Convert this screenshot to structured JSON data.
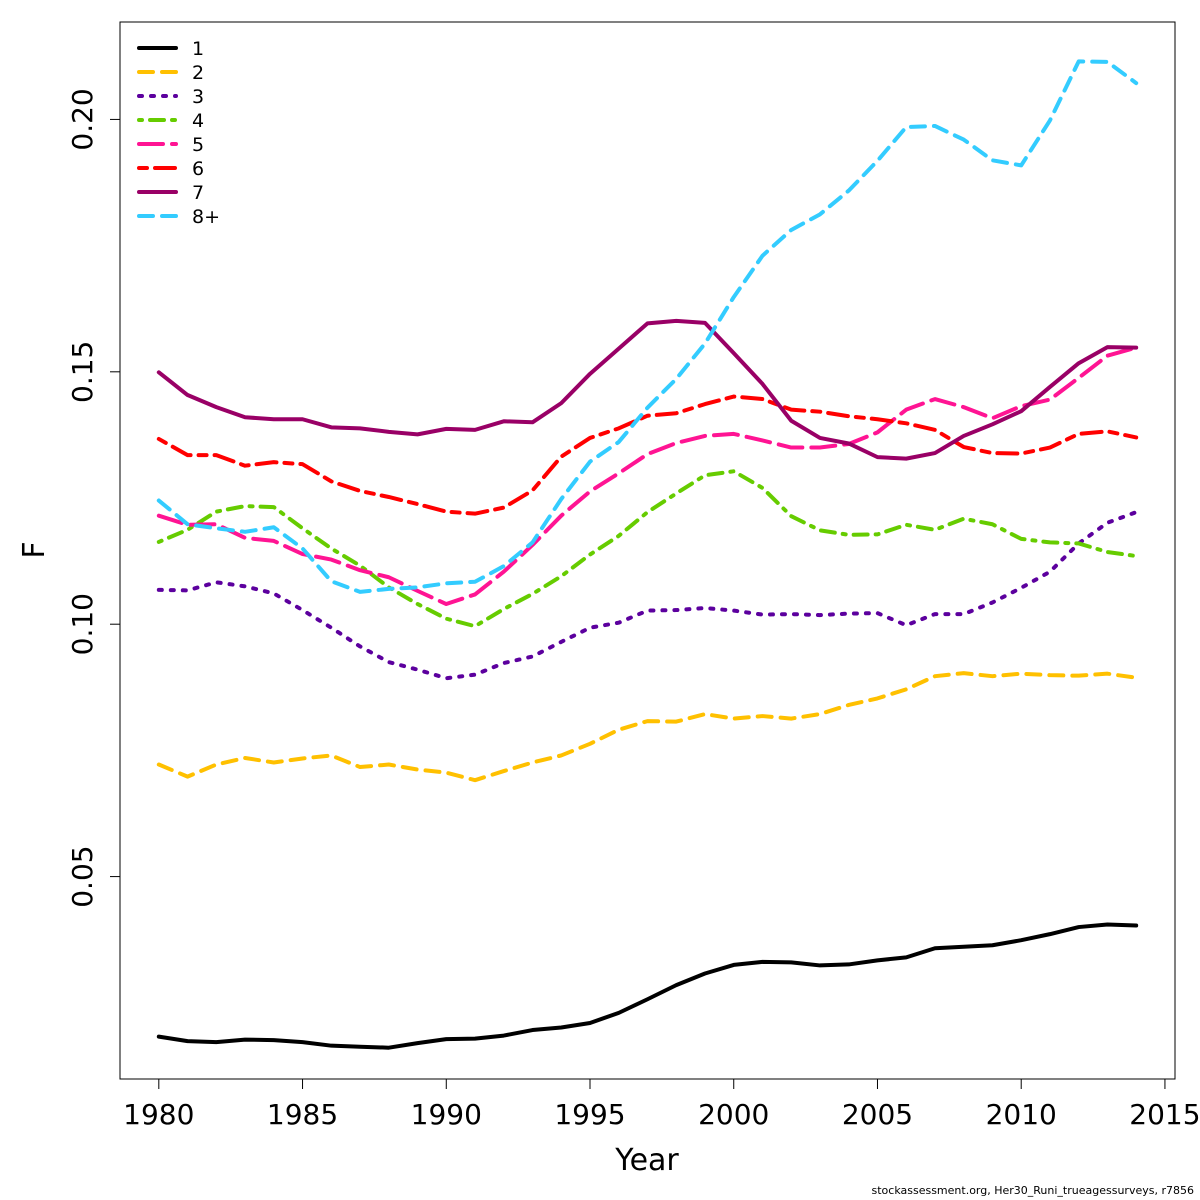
{
  "chart_data": {
    "type": "line",
    "title": "",
    "xlabel": "Year",
    "ylabel": "F",
    "xlim": [
      1978.65,
      2015.35
    ],
    "ylim": [
      0.0099,
      0.2193
    ],
    "x_ticks": [
      1980,
      1985,
      1990,
      1995,
      2000,
      2005,
      2010,
      2015
    ],
    "y_ticks": [
      0.05,
      0.1,
      0.15,
      0.2
    ],
    "y_tick_labels": [
      "0.05",
      "0.10",
      "0.15",
      "0.20"
    ],
    "grid": false,
    "legend_position": "top-left",
    "x": [
      1980,
      1981,
      1982,
      1983,
      1984,
      1985,
      1986,
      1987,
      1988,
      1989,
      1990,
      1991,
      1992,
      1993,
      1994,
      1995,
      1996,
      1997,
      1998,
      1999,
      2000,
      2001,
      2002,
      2003,
      2004,
      2005,
      2006,
      2007,
      2008,
      2009,
      2010,
      2011,
      2012,
      2013,
      2014
    ],
    "series": [
      {
        "name": "1",
        "color": "#000000",
        "dash": "solid",
        "values": [
          0.0183,
          0.0174,
          0.0172,
          0.0177,
          0.0176,
          0.0172,
          0.0165,
          0.0163,
          0.0161,
          0.017,
          0.0178,
          0.0179,
          0.0185,
          0.0196,
          0.0201,
          0.021,
          0.023,
          0.0257,
          0.0285,
          0.0308,
          0.0325,
          0.0331,
          0.033,
          0.0324,
          0.0326,
          0.0334,
          0.034,
          0.0358,
          0.0361,
          0.0364,
          0.0374,
          0.0386,
          0.04,
          0.0405,
          0.0403
        ]
      },
      {
        "name": "2",
        "color": "#FFC000",
        "dash": "dashed",
        "values": [
          0.0722,
          0.0698,
          0.0722,
          0.0735,
          0.0726,
          0.0734,
          0.074,
          0.0717,
          0.0722,
          0.0712,
          0.0706,
          0.0691,
          0.0709,
          0.0726,
          0.074,
          0.0763,
          0.0791,
          0.0808,
          0.0807,
          0.0822,
          0.0813,
          0.0818,
          0.0813,
          0.0822,
          0.084,
          0.0853,
          0.0871,
          0.0897,
          0.0903,
          0.0897,
          0.0902,
          0.0899,
          0.0898,
          0.0902,
          0.0894
        ]
      },
      {
        "name": "3",
        "color": "#5C009E",
        "dash": "dotted",
        "values": [
          0.1068,
          0.1067,
          0.1083,
          0.1075,
          0.1061,
          0.1028,
          0.0993,
          0.0956,
          0.0925,
          0.091,
          0.0893,
          0.09,
          0.0923,
          0.0936,
          0.0965,
          0.0993,
          0.1003,
          0.1027,
          0.1028,
          0.1032,
          0.1027,
          0.1019,
          0.102,
          0.1018,
          0.1021,
          0.1022,
          0.0998,
          0.102,
          0.102,
          0.1043,
          0.1072,
          0.1104,
          0.116,
          0.1201,
          0.1222
        ]
      },
      {
        "name": "4",
        "color": "#66CC00",
        "dash": "dotdash",
        "values": [
          0.1163,
          0.1187,
          0.1223,
          0.1234,
          0.1232,
          0.119,
          0.115,
          0.1116,
          0.1073,
          0.104,
          0.1011,
          0.0996,
          0.103,
          0.106,
          0.1095,
          0.1138,
          0.1175,
          0.1222,
          0.1259,
          0.1295,
          0.1303,
          0.127,
          0.1214,
          0.1186,
          0.1177,
          0.1178,
          0.1197,
          0.1187,
          0.1209,
          0.1198,
          0.1169,
          0.1162,
          0.116,
          0.1143,
          0.1135
        ]
      },
      {
        "name": "5",
        "color": "#FF1493",
        "dash": "longdash",
        "values": [
          0.1215,
          0.1197,
          0.1198,
          0.1171,
          0.1165,
          0.1139,
          0.1128,
          0.1107,
          0.1093,
          0.1066,
          0.104,
          0.1059,
          0.1104,
          0.1157,
          0.1215,
          0.1263,
          0.1299,
          0.1337,
          0.1359,
          0.1373,
          0.1377,
          0.1364,
          0.135,
          0.135,
          0.1357,
          0.138,
          0.1425,
          0.1446,
          0.143,
          0.1408,
          0.1432,
          0.1445,
          0.1488,
          0.1532,
          0.1548
        ]
      },
      {
        "name": "6",
        "color": "#FF0000",
        "dash": "twodash",
        "values": [
          0.1367,
          0.1335,
          0.1335,
          0.1314,
          0.1321,
          0.1317,
          0.1283,
          0.1264,
          0.1252,
          0.1238,
          0.1223,
          0.1219,
          0.1231,
          0.1265,
          0.1332,
          0.1369,
          0.1388,
          0.1413,
          0.1418,
          0.1436,
          0.1451,
          0.1446,
          0.1425,
          0.1421,
          0.1412,
          0.1406,
          0.1398,
          0.1385,
          0.1351,
          0.1339,
          0.1338,
          0.135,
          0.1377,
          0.1382,
          0.137
        ]
      },
      {
        "name": "7",
        "color": "#990066",
        "dash": "solid",
        "values": [
          0.1499,
          0.1454,
          0.143,
          0.141,
          0.1406,
          0.1406,
          0.139,
          0.1388,
          0.1381,
          0.1376,
          0.1387,
          0.1385,
          0.1402,
          0.14,
          0.1438,
          0.1496,
          0.1546,
          0.1596,
          0.1601,
          0.1597,
          0.1537,
          0.1476,
          0.1403,
          0.1369,
          0.1358,
          0.1331,
          0.1328,
          0.1339,
          0.1373,
          0.1396,
          0.1422,
          0.147,
          0.1517,
          0.1549,
          0.1548
        ]
      },
      {
        "name": "8+",
        "color": "#33CCFF",
        "dash": "dashed",
        "values": [
          0.1245,
          0.1198,
          0.119,
          0.1183,
          0.1192,
          0.115,
          0.1085,
          0.1064,
          0.107,
          0.1073,
          0.1081,
          0.1084,
          0.1115,
          0.1162,
          0.1248,
          0.1322,
          0.1361,
          0.1429,
          0.1486,
          0.1556,
          0.1648,
          0.173,
          0.1781,
          0.1812,
          0.1859,
          0.1918,
          0.1985,
          0.1987,
          0.196,
          0.1919,
          0.1909,
          0.1998,
          0.2115,
          0.2114,
          0.2072
        ]
      }
    ]
  },
  "credit": "stockassessment.org, Her30_Runi_trueagessurveys, r7856"
}
